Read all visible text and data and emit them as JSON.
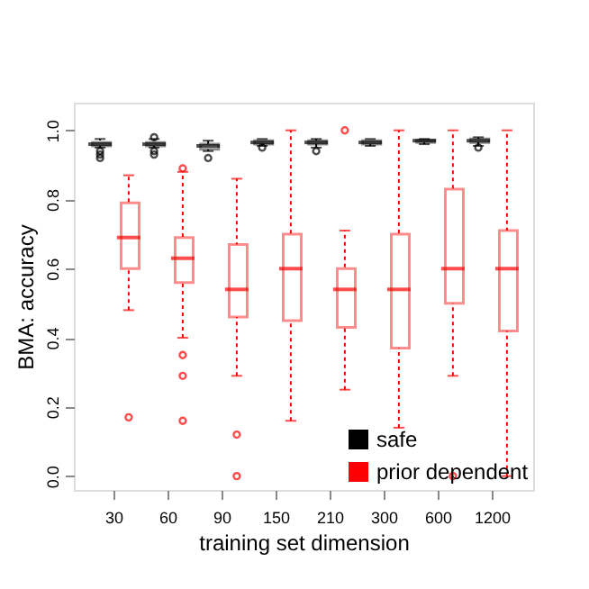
{
  "chart_data": {
    "type": "box",
    "xlabel": "training set dimension",
    "ylabel": "BMA: accuracy",
    "categories": [
      "30",
      "60",
      "90",
      "150",
      "210",
      "300",
      "600",
      "1200"
    ],
    "ylim": [
      -0.04,
      1.08
    ],
    "yticks": [
      {
        "value": 0,
        "label": "0.0"
      },
      0.2,
      0.4,
      0.6,
      0.8,
      {
        "value": 1,
        "label": "1.0"
      }
    ],
    "grid": false,
    "legend": "bottom right",
    "series": [
      {
        "name": "safe",
        "color": "#000000",
        "boxes": [
          {
            "low": 0.95,
            "q1": 0.955,
            "median": 0.96,
            "q3": 0.965,
            "high": 0.975,
            "outliers": [
              0.94,
              0.93,
              0.92
            ]
          },
          {
            "low": 0.95,
            "q1": 0.955,
            "median": 0.96,
            "q3": 0.965,
            "high": 0.975,
            "outliers": [
              0.98,
              0.94,
              0.93
            ]
          },
          {
            "low": 0.94,
            "q1": 0.945,
            "median": 0.955,
            "q3": 0.96,
            "high": 0.97,
            "outliers": [
              0.92
            ]
          },
          {
            "low": 0.955,
            "q1": 0.96,
            "median": 0.965,
            "q3": 0.97,
            "high": 0.975,
            "outliers": [
              0.95
            ]
          },
          {
            "low": 0.95,
            "q1": 0.96,
            "median": 0.965,
            "q3": 0.97,
            "high": 0.975,
            "outliers": [
              0.94
            ]
          },
          {
            "low": 0.955,
            "q1": 0.96,
            "median": 0.965,
            "q3": 0.97,
            "high": 0.975
          },
          {
            "low": 0.96,
            "q1": 0.965,
            "median": 0.97,
            "q3": 0.972,
            "high": 0.975
          },
          {
            "low": 0.955,
            "q1": 0.965,
            "median": 0.97,
            "q3": 0.975,
            "high": 0.98,
            "outliers": [
              0.95
            ]
          }
        ]
      },
      {
        "name": "prior dependent",
        "color": "#ff0000",
        "boxes": [
          {
            "low": 0.48,
            "q1": 0.6,
            "median": 0.69,
            "q3": 0.79,
            "high": 0.87,
            "outliers": [
              0.17
            ]
          },
          {
            "low": 0.4,
            "q1": 0.56,
            "median": 0.63,
            "q3": 0.69,
            "high": 0.88,
            "outliers": [
              0.89,
              0.35,
              0.29,
              0.16
            ]
          },
          {
            "low": 0.29,
            "q1": 0.46,
            "median": 0.54,
            "q3": 0.67,
            "high": 0.86,
            "outliers": [
              0.12,
              0.0
            ]
          },
          {
            "low": 0.16,
            "q1": 0.45,
            "median": 0.6,
            "q3": 0.7,
            "high": 1.0
          },
          {
            "low": 0.25,
            "q1": 0.43,
            "median": 0.54,
            "q3": 0.6,
            "high": 0.71,
            "outliers": [
              1.0
            ]
          },
          {
            "low": 0.14,
            "q1": 0.37,
            "median": 0.54,
            "q3": 0.7,
            "high": 1.0
          },
          {
            "low": 0.29,
            "q1": 0.5,
            "median": 0.6,
            "q3": 0.83,
            "high": 1.0,
            "outliers": [
              0.0
            ]
          },
          {
            "low": 0.0,
            "q1": 0.42,
            "median": 0.6,
            "q3": 0.71,
            "high": 1.0
          }
        ]
      }
    ]
  }
}
